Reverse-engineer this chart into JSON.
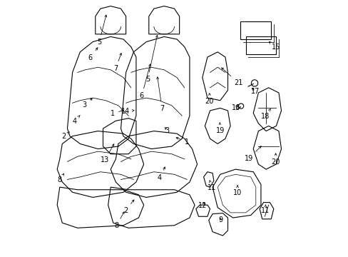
{
  "background_color": "#ffffff",
  "line_color": "#000000",
  "label_color": "#000000",
  "figsize": [
    4.89,
    3.6
  ],
  "dpi": 100
}
